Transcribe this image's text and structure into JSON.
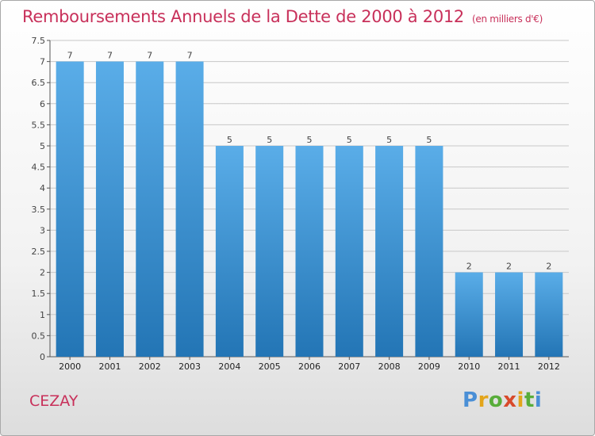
{
  "header": {
    "title": "Remboursements Annuels de la Dette de 2000 à 2012",
    "unit": "(en milliers d'€)"
  },
  "footer": {
    "city": "CEZAY",
    "logo_text": "Proxiti"
  },
  "colors": {
    "title": "#c8305a",
    "bar_top": "#5aade8",
    "bar_bottom": "#2375b5",
    "grid": "#c8c8c8"
  },
  "chart_data": {
    "type": "bar",
    "title": "Remboursements Annuels de la Dette de 2000 à 2012",
    "xlabel": "",
    "ylabel": "",
    "categories": [
      "2000",
      "2001",
      "2002",
      "2003",
      "2004",
      "2005",
      "2006",
      "2007",
      "2008",
      "2009",
      "2010",
      "2011",
      "2012"
    ],
    "values": [
      7,
      7,
      7,
      7,
      5,
      5,
      5,
      5,
      5,
      5,
      2,
      2,
      2
    ],
    "data_labels": [
      "7",
      "7",
      "7",
      "7",
      "5",
      "5",
      "5",
      "5",
      "5",
      "5",
      "2",
      "2",
      "2"
    ],
    "ylim": [
      0,
      7.5
    ],
    "yticks": [
      "0",
      "0.5",
      "1",
      "1.5",
      "2",
      "2.5",
      "3",
      "3.5",
      "4",
      "4.5",
      "5",
      "5.5",
      "6",
      "6.5",
      "7",
      "7.5"
    ],
    "grid": true,
    "legend": "none"
  }
}
